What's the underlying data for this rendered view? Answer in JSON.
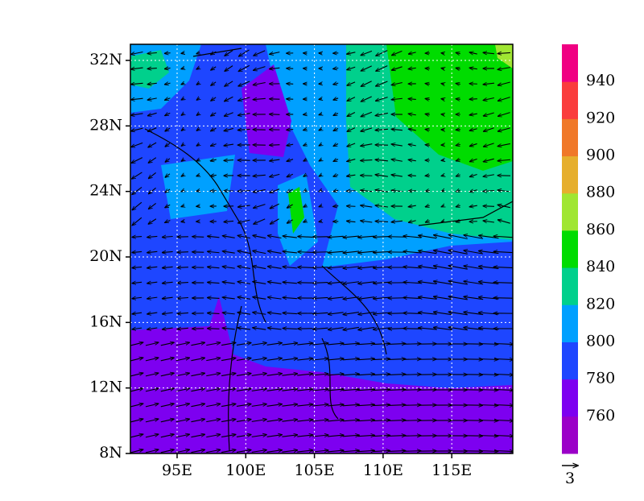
{
  "map": {
    "x_axis": {
      "ticks": [
        "95E",
        "100E",
        "105E",
        "110E",
        "115E"
      ]
    },
    "y_axis": {
      "ticks": [
        "32N",
        "28N",
        "24N",
        "20N",
        "16N",
        "12N",
        "8N"
      ]
    },
    "colorbar": {
      "colors": [
        "#9b00c8",
        "#7d00f0",
        "#1e46ff",
        "#00a0ff",
        "#00d08c",
        "#00dc00",
        "#a0e632",
        "#e6af2d",
        "#f07828",
        "#fa3c3c",
        "#f00082"
      ],
      "labels": [
        "760",
        "780",
        "800",
        "820",
        "840",
        "860",
        "880",
        "900",
        "920",
        "940"
      ]
    },
    "vector_reference": {
      "label": "3"
    }
  }
}
